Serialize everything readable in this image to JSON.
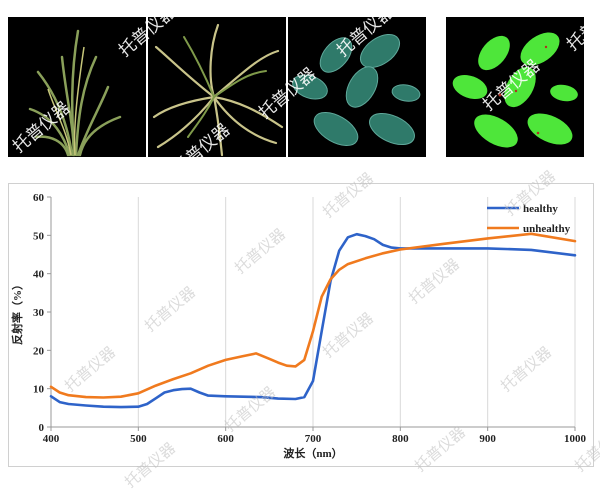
{
  "watermark": "托普仪器",
  "panels": [
    {
      "name": "healthy-rice-plant-photo"
    },
    {
      "name": "unhealthy-rice-plant-photo"
    },
    {
      "name": "leaves-rgb-photo"
    },
    {
      "name": "leaves-classified-photo"
    }
  ],
  "colors": {
    "healthy": "#2e63c9",
    "unhealthy": "#f07a1e",
    "grid": "#d9d9d9",
    "leaf_green": "#4ee63a",
    "leaf_teal": "#2f7a6a"
  },
  "chart_data": {
    "type": "line",
    "xlabel": "波长（nm）",
    "ylabel": "反射率（%）",
    "xlim": [
      400,
      1000
    ],
    "ylim": [
      0,
      60
    ],
    "xticks": [
      "400",
      "500",
      "600",
      "700",
      "800",
      "900",
      "1000"
    ],
    "yticks": [
      "0",
      "10",
      "20",
      "30",
      "40",
      "50",
      "60"
    ],
    "grid": "vertical",
    "legend_position": "top-right",
    "series": [
      {
        "name": "healthy",
        "x": [
          400,
          410,
          420,
          440,
          460,
          480,
          500,
          510,
          520,
          530,
          540,
          550,
          560,
          570,
          580,
          600,
          620,
          640,
          660,
          680,
          690,
          700,
          710,
          720,
          730,
          740,
          750,
          760,
          770,
          780,
          790,
          800,
          850,
          900,
          950,
          1000
        ],
        "y": [
          8.0,
          6.5,
          6.0,
          5.6,
          5.3,
          5.2,
          5.3,
          6.0,
          7.5,
          9.0,
          9.6,
          9.9,
          10.0,
          9.0,
          8.2,
          8.0,
          7.9,
          7.8,
          7.4,
          7.3,
          7.8,
          12.0,
          25.0,
          38.0,
          46.0,
          49.5,
          50.3,
          49.8,
          49.0,
          47.5,
          46.8,
          46.6,
          46.6,
          46.6,
          46.2,
          44.8
        ]
      },
      {
        "name": "unhealthy",
        "x": [
          400,
          410,
          420,
          440,
          460,
          480,
          500,
          520,
          540,
          560,
          580,
          600,
          620,
          635,
          650,
          660,
          670,
          680,
          690,
          700,
          710,
          720,
          730,
          740,
          760,
          780,
          800,
          850,
          900,
          950,
          1000
        ],
        "y": [
          10.5,
          9.0,
          8.3,
          7.8,
          7.7,
          7.9,
          8.8,
          10.8,
          12.5,
          14.0,
          16.0,
          17.5,
          18.5,
          19.2,
          17.8,
          16.8,
          16.0,
          15.8,
          17.5,
          25.0,
          34.0,
          38.5,
          41.0,
          42.5,
          44.0,
          45.3,
          46.3,
          47.8,
          49.2,
          50.4,
          48.5
        ]
      }
    ]
  }
}
